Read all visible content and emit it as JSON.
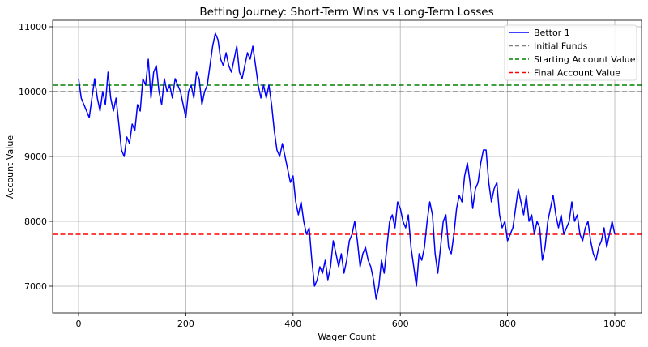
{
  "chart_data": {
    "type": "line",
    "title": "Betting Journey: Short-Term Wins vs Long-Term Losses",
    "xlabel": "Wager Count",
    "ylabel": "Account Value",
    "xlim": [
      -50,
      1050
    ],
    "ylim": [
      6600,
      11100
    ],
    "xticks": [
      0,
      200,
      400,
      600,
      800,
      1000
    ],
    "yticks": [
      7000,
      8000,
      9000,
      10000,
      11000
    ],
    "grid": true,
    "legend_position": "upper right",
    "series": [
      {
        "name": "Bettor 1",
        "color": "#0000ff",
        "style": "solid",
        "x": [
          0,
          5,
          10,
          15,
          20,
          25,
          30,
          35,
          40,
          45,
          50,
          55,
          60,
          65,
          70,
          75,
          80,
          85,
          90,
          95,
          100,
          105,
          110,
          115,
          120,
          125,
          130,
          135,
          140,
          145,
          150,
          155,
          160,
          165,
          170,
          175,
          180,
          185,
          190,
          195,
          200,
          205,
          210,
          215,
          220,
          225,
          230,
          235,
          240,
          245,
          250,
          255,
          260,
          265,
          270,
          275,
          280,
          285,
          290,
          295,
          300,
          305,
          310,
          315,
          320,
          325,
          330,
          335,
          340,
          345,
          350,
          355,
          360,
          365,
          370,
          375,
          380,
          385,
          390,
          395,
          400,
          405,
          410,
          415,
          420,
          425,
          430,
          435,
          440,
          445,
          450,
          455,
          460,
          465,
          470,
          475,
          480,
          485,
          490,
          495,
          500,
          505,
          510,
          515,
          520,
          525,
          530,
          535,
          540,
          545,
          550,
          555,
          560,
          565,
          570,
          575,
          580,
          585,
          590,
          595,
          600,
          605,
          610,
          615,
          620,
          625,
          630,
          635,
          640,
          645,
          650,
          655,
          660,
          665,
          670,
          675,
          680,
          685,
          690,
          695,
          700,
          705,
          710,
          715,
          720,
          725,
          730,
          735,
          740,
          745,
          750,
          755,
          760,
          765,
          770,
          775,
          780,
          785,
          790,
          795,
          800,
          805,
          810,
          815,
          820,
          825,
          830,
          835,
          840,
          845,
          850,
          855,
          860,
          865,
          870,
          875,
          880,
          885,
          890,
          895,
          900,
          905,
          910,
          915,
          920,
          925,
          930,
          935,
          940,
          945,
          950,
          955,
          960,
          965,
          970,
          975,
          980,
          985,
          990,
          995,
          1000
        ],
        "values": [
          10200,
          9900,
          9800,
          9700,
          9600,
          9900,
          10200,
          9900,
          9700,
          10000,
          9800,
          10300,
          9900,
          9700,
          9900,
          9500,
          9100,
          9000,
          9300,
          9200,
          9500,
          9400,
          9800,
          9700,
          10200,
          10100,
          10500,
          9900,
          10300,
          10400,
          10000,
          9800,
          10200,
          10000,
          10100,
          9900,
          10200,
          10100,
          10000,
          9800,
          9600,
          10000,
          10100,
          9900,
          10300,
          10200,
          9800,
          10000,
          10100,
          10400,
          10700,
          10900,
          10800,
          10500,
          10400,
          10600,
          10400,
          10300,
          10500,
          10700,
          10300,
          10200,
          10400,
          10600,
          10500,
          10700,
          10400,
          10100,
          9900,
          10100,
          9900,
          10100,
          9800,
          9400,
          9100,
          9000,
          9200,
          9000,
          8800,
          8600,
          8700,
          8300,
          8100,
          8300,
          8000,
          7800,
          7900,
          7400,
          7000,
          7100,
          7300,
          7200,
          7400,
          7100,
          7300,
          7700,
          7500,
          7300,
          7500,
          7200,
          7400,
          7700,
          7800,
          8000,
          7700,
          7300,
          7500,
          7600,
          7400,
          7300,
          7100,
          6800,
          7000,
          7400,
          7200,
          7600,
          8000,
          8100,
          7900,
          8300,
          8200,
          8000,
          7900,
          8100,
          7600,
          7300,
          7000,
          7500,
          7400,
          7600,
          8000,
          8300,
          8100,
          7500,
          7200,
          7600,
          8000,
          8100,
          7600,
          7500,
          7800,
          8200,
          8400,
          8300,
          8700,
          8900,
          8600,
          8200,
          8500,
          8600,
          8900,
          9100,
          9100,
          8600,
          8300,
          8500,
          8600,
          8100,
          7900,
          8000,
          7700,
          7800,
          7900,
          8200,
          8500,
          8300,
          8100,
          8400,
          8000,
          8100,
          7800,
          8000,
          7900,
          7400,
          7600,
          8000,
          8200,
          8400,
          8100,
          7900,
          8100,
          7800,
          7900,
          8000,
          8300,
          8000,
          8100,
          7800,
          7700,
          7900,
          8000,
          7700,
          7500,
          7400,
          7600,
          7700,
          7900,
          7600,
          7800,
          8000,
          7800
        ]
      },
      {
        "name": "Initial Funds",
        "color": "#808080",
        "style": "dashed",
        "y": 10000
      },
      {
        "name": "Starting Account Value",
        "color": "#008000",
        "style": "dashed",
        "y": 10100
      },
      {
        "name": "Final Account Value",
        "color": "#ff0000",
        "style": "dashed",
        "y": 7800
      }
    ]
  },
  "legend": {
    "items": [
      {
        "label": "Bettor 1",
        "color": "#0000ff",
        "dash": ""
      },
      {
        "label": "Initial Funds",
        "color": "#808080",
        "dash": "5,3"
      },
      {
        "label": "Starting Account Value",
        "color": "#008000",
        "dash": "5,3"
      },
      {
        "label": "Final Account Value",
        "color": "#ff0000",
        "dash": "5,3"
      }
    ]
  }
}
